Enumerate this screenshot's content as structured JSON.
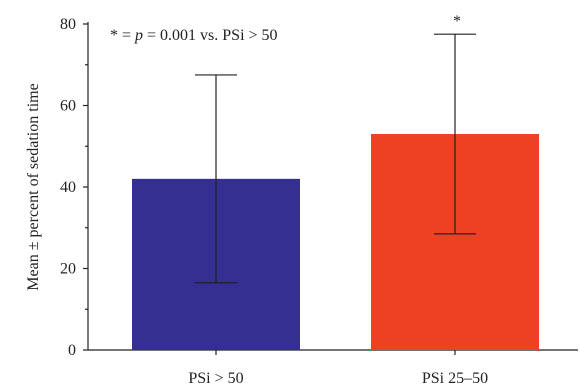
{
  "chart_data": {
    "type": "bar",
    "categories": [
      "PSi > 50",
      "PSi 25–50"
    ],
    "values": [
      42,
      53
    ],
    "error_upper": [
      67.5,
      77.5
    ],
    "error_lower": [
      16.5,
      28.5
    ],
    "colors": [
      "#352f91",
      "#ee4023"
    ],
    "ylabel": "Mean ± percent of sedation time",
    "ylim": [
      0,
      80
    ],
    "yticks": [
      0,
      20,
      40,
      60,
      80
    ],
    "significance_marks": [
      "",
      "*"
    ],
    "annotation": {
      "prefix": "* = ",
      "p_symbol": "p",
      "rest": " = 0.001 vs. PSi > 50"
    },
    "grid": false
  }
}
